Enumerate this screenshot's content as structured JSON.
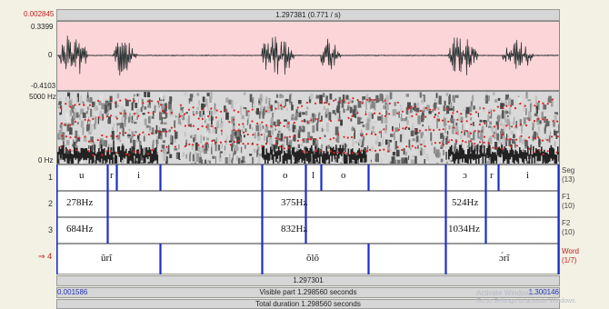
{
  "time_bar": {
    "left": "0.002845",
    "center": "1.297381 (0.771 / s)"
  },
  "waveform": {
    "y_max": "0.3399",
    "y_zero": "0",
    "y_min": "-0.4103"
  },
  "spectrogram": {
    "f_max": "5000 Hz",
    "f_min": "0 Hz"
  },
  "tiers": [
    {
      "number": "1",
      "name": "Seg",
      "count": "(13)",
      "labels": [
        "u",
        "r",
        "i",
        "o",
        "l",
        "o",
        "ɔ",
        "r",
        "i"
      ]
    },
    {
      "number": "2",
      "name": "F1",
      "count": "(10)",
      "labels": [
        "278Hz",
        "375Hz",
        "524Hz"
      ]
    },
    {
      "number": "3",
      "name": "F2",
      "count": "(10)",
      "labels": [
        "684Hz",
        "832Hz",
        "1034Hz"
      ]
    },
    {
      "number": "4",
      "marker": "⇒",
      "name": "Word",
      "count": "(1/7)",
      "labels": [
        "ũrĩ",
        "õlõ",
        "ɔ́rĩ"
      ]
    }
  ],
  "bottom": {
    "cursor_time": "1.297301",
    "visible_start": "0.001586",
    "visible_label": "Visible part 1.298560 seconds",
    "visible_end": "1.300146",
    "total_label": "Total duration 1.298560 seconds"
  },
  "overlay": {
    "line1": "Activate Windows",
    "line2": "Go to Settings to activate Windows."
  },
  "colors": {
    "wave_bg": "#fcd5d8",
    "boundary": "#1a2fc4",
    "formant": "#e02020"
  }
}
